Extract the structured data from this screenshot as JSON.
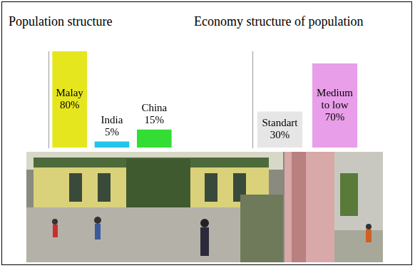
{
  "chart_data": [
    {
      "type": "bar",
      "title": "Population structure",
      "categories": [
        "Malay",
        "India",
        "China"
      ],
      "values": [
        80,
        5,
        15
      ],
      "value_labels": [
        "80%",
        "5%",
        "15%"
      ],
      "colors": [
        "#e6e61e",
        "#22c4e8",
        "#33dd33"
      ],
      "ylim": [
        0,
        80
      ],
      "grid": false,
      "data_labels": true,
      "tick_labels": false
    },
    {
      "type": "bar",
      "title": "Economy structure of population",
      "categories": [
        "Standart",
        "Medium to low"
      ],
      "values": [
        30,
        70
      ],
      "value_labels": [
        "30%",
        "70%"
      ],
      "colors": [
        "#e6e6e6",
        "#e89ee8"
      ],
      "ylim": [
        0,
        80
      ],
      "grid": false,
      "data_labels": true,
      "tick_labels": false
    }
  ]
}
